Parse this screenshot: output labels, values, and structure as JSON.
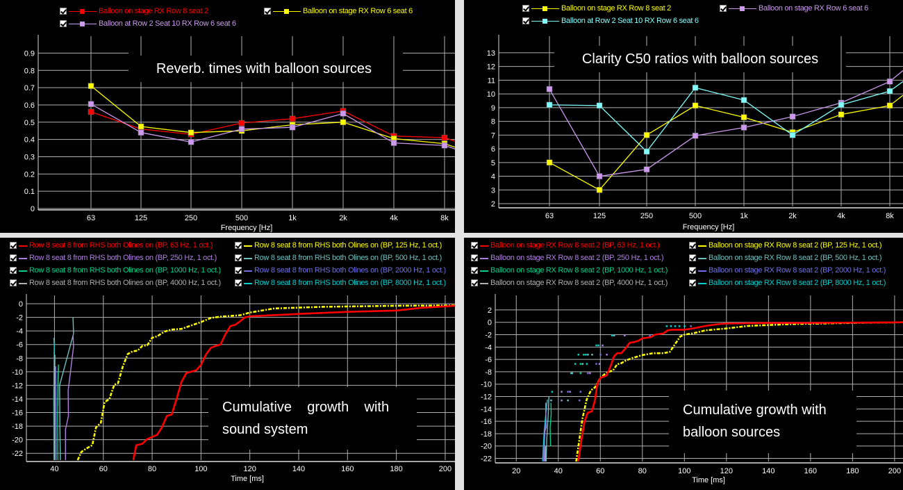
{
  "colors": {
    "background": "#000000",
    "grid": "#b0b0b0",
    "separator": "#e2e2e2",
    "text": "#ffffff"
  },
  "chart_data": [
    {
      "type": "line",
      "title": "Reverb. times with balloon sources",
      "xlabel": "Frequency [Hz]",
      "ylabel": "",
      "categories": [
        "63",
        "125",
        "250",
        "500",
        "1k",
        "2k",
        "4k",
        "8k"
      ],
      "yticks": [
        "0",
        "0.1",
        "0.2",
        "0.3",
        "0.4",
        "0.5",
        "0.6",
        "0.7",
        "0.8",
        "0.9"
      ],
      "ylim": [
        0,
        0.95
      ],
      "grid": true,
      "legend_position": "top",
      "series": [
        {
          "name": "Balloon on stage  RX Row 8 seat 2",
          "color": "#ff0000",
          "values": [
            0.56,
            0.46,
            0.43,
            0.495,
            0.52,
            0.565,
            0.42,
            0.41
          ],
          "tail": 0.39
        },
        {
          "name": "Balloon on stage  RX Row 6 seat 6",
          "color": "#ffff00",
          "values": [
            0.71,
            0.475,
            0.44,
            0.45,
            0.485,
            0.5,
            0.405,
            0.375
          ],
          "tail": 0.355
        },
        {
          "name": "Balloon at Row 2 Seat 10  RX Row 6 seat 6",
          "color": "#cc99ee",
          "values": [
            0.605,
            0.44,
            0.385,
            0.46,
            0.47,
            0.55,
            0.38,
            0.365
          ],
          "tail": 0.345
        }
      ]
    },
    {
      "type": "line",
      "title": "Clarity C50 ratios with balloon sources",
      "xlabel": "Frequency [Hz]",
      "ylabel": "",
      "categories": [
        "63",
        "125",
        "250",
        "500",
        "1k",
        "2k",
        "4k",
        "8k"
      ],
      "yticks": [
        "2",
        "3",
        "4",
        "5",
        "6",
        "7",
        "8",
        "9",
        "10",
        "11",
        "12",
        "13"
      ],
      "ylim": [
        1.8,
        13.6
      ],
      "grid": true,
      "legend_position": "top",
      "series": [
        {
          "name": "Balloon on stage  RX Row 8 seat 2",
          "color": "#ffff00",
          "values": [
            5.0,
            3.0,
            7.0,
            9.15,
            8.3,
            7.2,
            8.5,
            9.15
          ],
          "tail": 9.9
        },
        {
          "name": "Balloon on stage  RX Row 6 seat 6",
          "color": "#cc99ee",
          "values": [
            10.35,
            4.0,
            4.5,
            6.95,
            7.55,
            8.35,
            9.35,
            10.9
          ],
          "tail": 11.7
        },
        {
          "name": "Balloon at Row 2 Seat 10  RX Row 6 seat 6",
          "color": "#80ffff",
          "values": [
            9.2,
            9.15,
            5.8,
            10.45,
            9.55,
            7.0,
            9.2,
            10.2
          ],
          "tail": 10.9
        }
      ]
    },
    {
      "type": "line",
      "title": "Cumulative growth with sound system",
      "title_lines": [
        "Cumulative    growth    with",
        "sound system"
      ],
      "xlabel": "Time [ms]",
      "ylabel": "",
      "xticks": [
        "40",
        "60",
        "80",
        "100",
        "120",
        "140",
        "160",
        "180",
        "200"
      ],
      "yticks": [
        "0",
        "-2",
        "-4",
        "-6",
        "-8",
        "-10",
        "-12",
        "-14",
        "-16",
        "-18",
        "-20",
        "-22"
      ],
      "xlim": [
        28.5,
        204
      ],
      "ylim": [
        -23,
        0
      ],
      "grid": true,
      "legend_position": "top",
      "series": [
        {
          "name": "Row 8 seat  8 from RHS both Olines on (BP, 63 Hz, 1 oct.)",
          "color": "#ff0000",
          "style": "solid",
          "x": [
            72.3,
            73.5,
            76,
            78,
            80,
            82,
            84,
            86,
            88,
            90,
            92,
            94,
            96,
            98,
            100,
            102,
            104,
            106,
            108,
            110,
            112,
            114,
            116,
            118,
            120,
            140,
            160,
            180,
            190,
            200,
            204
          ],
          "y": [
            -23,
            -20.8,
            -20.6,
            -19.9,
            -19.6,
            -19.3,
            -18.2,
            -16.5,
            -16.3,
            -14,
            -11.5,
            -10.2,
            -10,
            -9.8,
            -9.0,
            -7.5,
            -6.5,
            -6.2,
            -6.0,
            -4.5,
            -3.3,
            -3.1,
            -2.6,
            -2.0,
            -1.85,
            -1.5,
            -1.2,
            -1.0,
            -0.6,
            -0.4,
            -0.3
          ]
        },
        {
          "name": "Row 8 seat  8 from RHS both Olines on (BP, 125 Hz, 1 oct.)",
          "color": "#ffff00",
          "style": "dashdot",
          "x": [
            49.5,
            51,
            53,
            55.5,
            57,
            59,
            60.5,
            62.5,
            64.5,
            66,
            68,
            70,
            72,
            74,
            76,
            78,
            80,
            82,
            85,
            88,
            92,
            96,
            100,
            104,
            108,
            116,
            120,
            130,
            150,
            180,
            204
          ],
          "y": [
            -23,
            -21.8,
            -21.3,
            -20.8,
            -18.2,
            -17.5,
            -14.5,
            -14.0,
            -11.9,
            -11.7,
            -9.2,
            -7.4,
            -7.0,
            -6.9,
            -6.2,
            -6.1,
            -5.0,
            -4.8,
            -4.1,
            -3.8,
            -3.7,
            -3.2,
            -2.7,
            -2.1,
            -1.9,
            -1.7,
            -1.3,
            -0.7,
            -0.45,
            -0.3,
            -0.25
          ]
        },
        {
          "name": "Row 8 seat  8 from RHS both Olines on (BP, 250 Hz, 1 oct.)",
          "color": "#b080e0",
          "style": "solid",
          "x": [
            44.5,
            44.5,
            45.7,
            45.6,
            47.8,
            47.6
          ],
          "y": [
            -23,
            -18.5,
            -16.5,
            -12.8,
            -6.3,
            -4.6
          ]
        },
        {
          "name": "Row 8 seat  8 from RHS both Olines on (BP, 500 Hz, 1 oct.)",
          "color": "#70c0c0",
          "style": "solid",
          "x": [
            42.4,
            42.2,
            42.1,
            47.8,
            47.6
          ],
          "y": [
            -23,
            -18.2,
            -12,
            -4.4,
            -2.0
          ]
        },
        {
          "name": "Row 8 seat  8 from RHS both Olines on (BP, 1000 Hz, 1 oct.)",
          "color": "#00d090",
          "style": "solid",
          "x": [
            41.4,
            41.3,
            41.4,
            41.6,
            41.4
          ],
          "y": [
            -23,
            -17,
            -10.5,
            -9,
            -15
          ]
        },
        {
          "name": "Row 8 seat  8 from RHS both Olines on (BP, 2000 Hz, 1 oct.)",
          "color": "#7070e0",
          "style": "solid",
          "x": [
            40.8,
            40.6,
            40.5
          ],
          "y": [
            -23,
            -12,
            -9.2
          ]
        },
        {
          "name": "Row 8 seat  8 from RHS both Olines on (BP, 4000 Hz, 1 oct.)",
          "color": "#b0b0b0",
          "style": "solid",
          "x": [
            40.2,
            40.1,
            40.2
          ],
          "y": [
            -23,
            -10,
            -7.5
          ]
        },
        {
          "name": "Row 8 seat  8 from RHS both Olines on (BP, 8000 Hz, 1 oct.)",
          "color": "#00d0d0",
          "style": "solid",
          "x": [
            39.8,
            39.7,
            39.9,
            39.7
          ],
          "y": [
            -23,
            -14,
            -6,
            -5
          ]
        }
      ]
    },
    {
      "type": "line",
      "title": "Cumulative growth with balloon sources",
      "title_lines": [
        "Cumulative growth with",
        "balloon sources"
      ],
      "xlabel": "Time [ms]",
      "ylabel": "",
      "xticks": [
        "20",
        "40",
        "60",
        "80",
        "100",
        "120",
        "140",
        "160",
        "180",
        "200"
      ],
      "yticks": [
        "2",
        "0",
        "-2",
        "-4",
        "-6",
        "-8",
        "-10",
        "-12",
        "-14",
        "-16",
        "-18",
        "-20",
        "-22"
      ],
      "xlim": [
        10,
        204
      ],
      "ylim": [
        -22.5,
        3
      ],
      "grid": true,
      "legend_position": "top",
      "series": [
        {
          "name": "Balloon on stage  RX Row 8 seat 2 (BP, 63 Hz, 1 oct.)",
          "color": "#ff0000",
          "style": "solid",
          "x": [
            49.5,
            51,
            52.5,
            54,
            56,
            57.5,
            58.5,
            60,
            61.5,
            63,
            65,
            66.5,
            68,
            70,
            72,
            74,
            76,
            78,
            80,
            82,
            84,
            86,
            88,
            90,
            92,
            94,
            96,
            100,
            104,
            110,
            116,
            120,
            140,
            160,
            180,
            204
          ],
          "y": [
            -22.5,
            -19,
            -16,
            -14.6,
            -14.4,
            -12.5,
            -10,
            -9.0,
            -8.8,
            -8.6,
            -7,
            -5.5,
            -5.0,
            -5.0,
            -4.2,
            -3.3,
            -3.2,
            -3.0,
            -2.6,
            -2.5,
            -2.4,
            -2.0,
            -1.9,
            -1.8,
            -1.3,
            -1.2,
            -1.2,
            -1.2,
            -1.0,
            -0.6,
            -0.3,
            -0.2,
            -0.1,
            -0.1,
            -0.05,
            0
          ]
        },
        {
          "name": "Balloon on stage  RX Row 8 seat 2 (BP, 125 Hz, 1 oct.)",
          "color": "#ffff00",
          "style": "dashdot",
          "x": [
            48.5,
            50,
            51.5,
            53.5,
            55.5,
            57.5,
            60,
            62,
            64,
            66,
            68,
            70,
            72,
            75,
            80,
            85,
            90,
            93,
            95,
            98,
            100,
            104,
            110,
            120,
            130,
            150,
            180,
            204
          ],
          "y": [
            -22.5,
            -19,
            -15.5,
            -12.5,
            -11,
            -10.5,
            -9.0,
            -8.4,
            -8.0,
            -7.8,
            -6.8,
            -6.6,
            -6.2,
            -5.8,
            -5.3,
            -5.0,
            -5.0,
            -4.8,
            -3.8,
            -2.3,
            -2.0,
            -1.8,
            -1.3,
            -1.0,
            -0.6,
            -0.3,
            -0.1,
            0
          ]
        },
        {
          "name": "Balloon on stage  RX Row 8 seat 2 (BP, 250 Hz, 1 oct.)",
          "color": "#b080e0",
          "style": "solid",
          "x": [
            33.5,
            33.3,
            34.2,
            34.0
          ],
          "y": [
            -22.5,
            -18,
            -17,
            -13
          ]
        },
        {
          "name": "Balloon on stage  RX Row 8 seat 2 (BP, 500 Hz, 1 oct.)",
          "color": "#70c0c0",
          "style": "solid",
          "x": [
            34.2,
            34.5,
            35.2,
            35.5
          ],
          "y": [
            -22.5,
            -19,
            -15,
            -12
          ]
        },
        {
          "name": "Balloon on stage  RX Row 8 seat 2 (BP, 1000 Hz, 1 oct.)",
          "color": "#00d090",
          "style": "solid",
          "x": [
            36.3,
            36.1,
            36.6,
            36.5
          ],
          "y": [
            -20,
            -17,
            -14.8,
            -13
          ]
        },
        {
          "name": "Balloon on stage  RX Row 8 seat 2 (BP, 2000 Hz, 1 oct.)",
          "color": "#7070e0",
          "style": "solid",
          "x": [
            33.0,
            33.2,
            34.0
          ],
          "y": [
            -22.5,
            -20,
            -16
          ]
        },
        {
          "name": "Balloon on stage  RX Row 8 seat 2 (BP, 4000 Hz, 1 oct.)",
          "color": "#b0b0b0",
          "style": "solid",
          "x": [
            33.8,
            34.0
          ],
          "y": [
            -22.5,
            -20
          ]
        },
        {
          "name": "Balloon on stage  RX Row 8 seat 2 (BP, 8000 Hz, 1 oct.)",
          "color": "#00d0d0",
          "style": "solid",
          "x": [
            32.5,
            32.8,
            33.2,
            34.0,
            34.8
          ],
          "y": [
            -22.5,
            -20.5,
            -18,
            -15,
            -12.5
          ]
        }
      ],
      "scatter_points": [
        {
          "x": 37,
          "y": -11.2,
          "color": "#00d0d0"
        },
        {
          "x": 41.5,
          "y": -11.2,
          "color": "#b080e0"
        },
        {
          "x": 44.5,
          "y": -11.2,
          "color": "#7070e0"
        },
        {
          "x": 45.5,
          "y": -11.2,
          "color": "#b080e0"
        },
        {
          "x": 50.5,
          "y": -11.2,
          "color": "#7070e0"
        },
        {
          "x": 36.5,
          "y": -12.6,
          "color": "#70c0c0"
        },
        {
          "x": 41.5,
          "y": -12.6,
          "color": "#b080e0"
        },
        {
          "x": 44.5,
          "y": -12.6,
          "color": "#70c0c0"
        },
        {
          "x": 50,
          "y": -12.6,
          "color": "#7070e0"
        },
        {
          "x": 46,
          "y": -8.2,
          "color": "#00d0d0"
        },
        {
          "x": 46.5,
          "y": -8.2,
          "color": "#70c0c0"
        },
        {
          "x": 50.5,
          "y": -8.2,
          "color": "#00d090"
        },
        {
          "x": 54,
          "y": -8.2,
          "color": "#7070e0"
        },
        {
          "x": 55,
          "y": -8.2,
          "color": "#b080e0"
        },
        {
          "x": 48,
          "y": -6.7,
          "color": "#00d0d0"
        },
        {
          "x": 50.5,
          "y": -6.7,
          "color": "#00d090"
        },
        {
          "x": 51.5,
          "y": -6.7,
          "color": "#70c0c0"
        },
        {
          "x": 53.5,
          "y": -6.7,
          "color": "#00d0d0"
        },
        {
          "x": 58,
          "y": -6.7,
          "color": "#7070e0"
        },
        {
          "x": 59.5,
          "y": -6.7,
          "color": "#b080e0"
        },
        {
          "x": 49.5,
          "y": -5.2,
          "color": "#00d0d0"
        },
        {
          "x": 52,
          "y": -5.2,
          "color": "#00d090"
        },
        {
          "x": 53,
          "y": -5.2,
          "color": "#00d0d0"
        },
        {
          "x": 54,
          "y": -5.2,
          "color": "#70c0c0"
        },
        {
          "x": 56,
          "y": -5.2,
          "color": "#70c0c0"
        },
        {
          "x": 60,
          "y": -5.2,
          "color": "#7070e0"
        },
        {
          "x": 63,
          "y": -5.2,
          "color": "#b080e0"
        },
        {
          "x": 58,
          "y": -3.7,
          "color": "#00d090"
        },
        {
          "x": 59,
          "y": -3.7,
          "color": "#00d0d0"
        },
        {
          "x": 61,
          "y": -3.7,
          "color": "#b080e0"
        },
        {
          "x": 65.5,
          "y": -2.1,
          "color": "#00d0d0"
        },
        {
          "x": 66.5,
          "y": -2.1,
          "color": "#70c0c0"
        },
        {
          "x": 71.5,
          "y": -2.1,
          "color": "#b080e0"
        },
        {
          "x": 83.5,
          "y": -2.1,
          "color": "#7070e0"
        },
        {
          "x": 73,
          "y": -3.7,
          "color": "#b080e0"
        },
        {
          "x": 91.5,
          "y": -0.6,
          "color": "#00d0d0"
        },
        {
          "x": 93.5,
          "y": -0.6,
          "color": "#00d0d0"
        },
        {
          "x": 95.5,
          "y": -0.6,
          "color": "#00d0d0"
        },
        {
          "x": 97.5,
          "y": -0.6,
          "color": "#00d0d0"
        },
        {
          "x": 100,
          "y": -0.6,
          "color": "#00d0d0"
        },
        {
          "x": 103,
          "y": -0.6,
          "color": "#7070e0"
        }
      ]
    }
  ]
}
